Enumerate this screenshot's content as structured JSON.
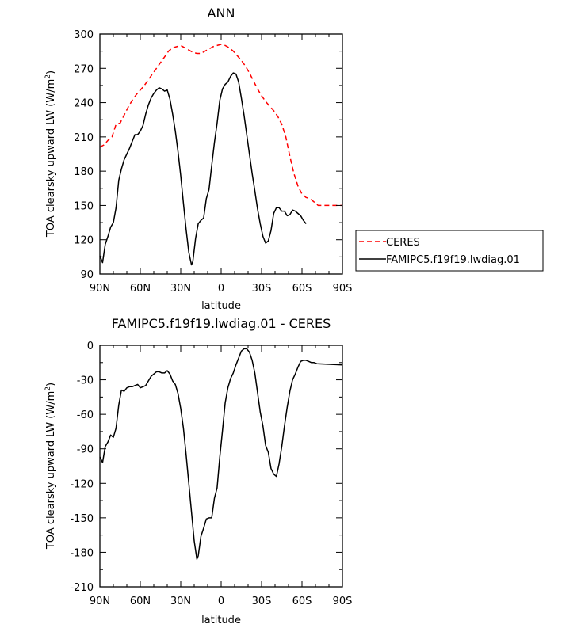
{
  "chart_data": [
    {
      "type": "line",
      "title": "ANN",
      "xlabel": "latitude",
      "ylabel_main": "TOA clearsky upward LW (W/m",
      "ylabel_sup": "2",
      "ylabel_close": ")",
      "xlim": [
        90,
        -90
      ],
      "ylim": [
        90,
        300
      ],
      "x_ticks": [
        {
          "value": 90,
          "label": "90N"
        },
        {
          "value": 60,
          "label": "60N"
        },
        {
          "value": 30,
          "label": "30N"
        },
        {
          "value": 0,
          "label": "0"
        },
        {
          "value": -30,
          "label": "30S"
        },
        {
          "value": -60,
          "label": "60S"
        },
        {
          "value": -90,
          "label": "90S"
        }
      ],
      "y_ticks": [
        90,
        120,
        150,
        180,
        210,
        240,
        270,
        300
      ],
      "legend": "outside-right",
      "series": [
        {
          "name": "CERES",
          "color": "#ff0000",
          "dash": "dashed",
          "points": [
            [
              90,
              201
            ],
            [
              87,
              203
            ],
            [
              84,
              207
            ],
            [
              81,
              210
            ],
            [
              78,
              221
            ],
            [
              75,
              222
            ],
            [
              72,
              229
            ],
            [
              69,
              236
            ],
            [
              66,
              242
            ],
            [
              63,
              247
            ],
            [
              60,
              251
            ],
            [
              57,
              255
            ],
            [
              54,
              260
            ],
            [
              51,
              265
            ],
            [
              48,
              270
            ],
            [
              45,
              275
            ],
            [
              42,
              280
            ],
            [
              39,
              285
            ],
            [
              36,
              288
            ],
            [
              33,
              289
            ],
            [
              30,
              290
            ],
            [
              27,
              288
            ],
            [
              24,
              286
            ],
            [
              21,
              284
            ],
            [
              18,
              283
            ],
            [
              15,
              283
            ],
            [
              12,
              285
            ],
            [
              9,
              287
            ],
            [
              6,
              289
            ],
            [
              3,
              290
            ],
            [
              0,
              291
            ],
            [
              -3,
              290
            ],
            [
              -6,
              288
            ],
            [
              -9,
              285
            ],
            [
              -12,
              281
            ],
            [
              -15,
              277
            ],
            [
              -18,
              272
            ],
            [
              -21,
              266
            ],
            [
              -24,
              259
            ],
            [
              -27,
              252
            ],
            [
              -30,
              246
            ],
            [
              -33,
              241
            ],
            [
              -36,
              237
            ],
            [
              -39,
              233
            ],
            [
              -42,
              228
            ],
            [
              -45,
              221
            ],
            [
              -48,
              210
            ],
            [
              -51,
              193
            ],
            [
              -54,
              178
            ],
            [
              -57,
              167
            ],
            [
              -60,
              160
            ],
            [
              -63,
              157
            ],
            [
              -66,
              156
            ],
            [
              -69,
              153
            ],
            [
              -72,
              150
            ],
            [
              -90,
              150
            ]
          ]
        },
        {
          "name": "FAMIPC5.f19f19.lwdiag.01",
          "color": "#000000",
          "dash": "solid",
          "points": [
            [
              90,
              106
            ],
            [
              88,
              100
            ],
            [
              86,
              116
            ],
            [
              84,
              123
            ],
            [
              82,
              131
            ],
            [
              80,
              135
            ],
            [
              78,
              148
            ],
            [
              76,
              172
            ],
            [
              74,
              182
            ],
            [
              72,
              190
            ],
            [
              70,
              195
            ],
            [
              68,
              200
            ],
            [
              66,
              206
            ],
            [
              64,
              212
            ],
            [
              62,
              212
            ],
            [
              60,
              215
            ],
            [
              58,
              220
            ],
            [
              56,
              230
            ],
            [
              54,
              238
            ],
            [
              52,
              244
            ],
            [
              50,
              248
            ],
            [
              48,
              251
            ],
            [
              46,
              253
            ],
            [
              44,
              252
            ],
            [
              42,
              250
            ],
            [
              40,
              251
            ],
            [
              38,
              243
            ],
            [
              36,
              230
            ],
            [
              34,
              215
            ],
            [
              32,
              197
            ],
            [
              30,
              176
            ],
            [
              28,
              152
            ],
            [
              26,
              129
            ],
            [
              24,
              109
            ],
            [
              22,
              98
            ],
            [
              21,
              101
            ],
            [
              19,
              121
            ],
            [
              17,
              134
            ],
            [
              15,
              137
            ],
            [
              13,
              139
            ],
            [
              11,
              156
            ],
            [
              9,
              164
            ],
            [
              7,
              185
            ],
            [
              5,
              205
            ],
            [
              3,
              222
            ],
            [
              1,
              242
            ],
            [
              -1,
              252
            ],
            [
              -3,
              256
            ],
            [
              -5,
              258
            ],
            [
              -7,
              263
            ],
            [
              -9,
              266
            ],
            [
              -11,
              265
            ],
            [
              -13,
              258
            ],
            [
              -15,
              244
            ],
            [
              -17,
              229
            ],
            [
              -19,
              212
            ],
            [
              -21,
              195
            ],
            [
              -23,
              178
            ],
            [
              -25,
              163
            ],
            [
              -27,
              147
            ],
            [
              -29,
              134
            ],
            [
              -31,
              123
            ],
            [
              -33,
              117
            ],
            [
              -35,
              119
            ],
            [
              -37,
              128
            ],
            [
              -39,
              143
            ],
            [
              -41,
              148
            ],
            [
              -43,
              148
            ],
            [
              -45,
              145
            ],
            [
              -47,
              145
            ],
            [
              -49,
              141
            ],
            [
              -51,
              142
            ],
            [
              -53,
              146
            ],
            [
              -55,
              145
            ],
            [
              -57,
              143
            ],
            [
              -59,
              141
            ],
            [
              -61,
              137
            ],
            [
              -63,
              134
            ]
          ]
        }
      ]
    },
    {
      "type": "line",
      "title": "FAMIPC5.f19f19.lwdiag.01 - CERES",
      "xlabel": "latitude",
      "ylabel_main": "TOA clearsky upward LW (W/m",
      "ylabel_sup": "2",
      "ylabel_close": ")",
      "xlim": [
        90,
        -90
      ],
      "ylim": [
        -210,
        0
      ],
      "x_ticks": [
        {
          "value": 90,
          "label": "90N"
        },
        {
          "value": 60,
          "label": "60N"
        },
        {
          "value": 30,
          "label": "30N"
        },
        {
          "value": 0,
          "label": "0"
        },
        {
          "value": -30,
          "label": "30S"
        },
        {
          "value": -60,
          "label": "60S"
        },
        {
          "value": -90,
          "label": "90S"
        }
      ],
      "y_ticks": [
        -210,
        -180,
        -150,
        -120,
        -90,
        -60,
        -30,
        0
      ],
      "series": [
        {
          "name": "",
          "color": "#000000",
          "dash": "solid",
          "points": [
            [
              90,
              -97
            ],
            [
              88,
              -102
            ],
            [
              86,
              -88
            ],
            [
              84,
              -84
            ],
            [
              82,
              -78
            ],
            [
              80,
              -80
            ],
            [
              78,
              -72
            ],
            [
              76,
              -52
            ],
            [
              74,
              -39
            ],
            [
              72,
              -40
            ],
            [
              70,
              -37
            ],
            [
              68,
              -36
            ],
            [
              66,
              -36
            ],
            [
              64,
              -35
            ],
            [
              62,
              -34
            ],
            [
              60,
              -37
            ],
            [
              58,
              -36
            ],
            [
              56,
              -35
            ],
            [
              54,
              -31
            ],
            [
              52,
              -27
            ],
            [
              50,
              -25
            ],
            [
              48,
              -23
            ],
            [
              46,
              -23
            ],
            [
              44,
              -24
            ],
            [
              42,
              -24
            ],
            [
              40,
              -22
            ],
            [
              38,
              -25
            ],
            [
              36,
              -31
            ],
            [
              34,
              -34
            ],
            [
              32,
              -42
            ],
            [
              30,
              -55
            ],
            [
              28,
              -72
            ],
            [
              26,
              -95
            ],
            [
              24,
              -120
            ],
            [
              22,
              -145
            ],
            [
              20,
              -170
            ],
            [
              18,
              -186
            ],
            [
              17,
              -183
            ],
            [
              15,
              -166
            ],
            [
              13,
              -159
            ],
            [
              11,
              -151
            ],
            [
              9,
              -150
            ],
            [
              7,
              -150
            ],
            [
              5,
              -133
            ],
            [
              3,
              -124
            ],
            [
              1,
              -97
            ],
            [
              -1,
              -74
            ],
            [
              -3,
              -50
            ],
            [
              -5,
              -37
            ],
            [
              -7,
              -29
            ],
            [
              -9,
              -24
            ],
            [
              -11,
              -17
            ],
            [
              -13,
              -11
            ],
            [
              -15,
              -5
            ],
            [
              -17,
              -3
            ],
            [
              -19,
              -3
            ],
            [
              -21,
              -6
            ],
            [
              -23,
              -13
            ],
            [
              -25,
              -24
            ],
            [
              -27,
              -41
            ],
            [
              -29,
              -58
            ],
            [
              -31,
              -70
            ],
            [
              -33,
              -87
            ],
            [
              -35,
              -93
            ],
            [
              -37,
              -107
            ],
            [
              -39,
              -112
            ],
            [
              -41,
              -114
            ],
            [
              -43,
              -103
            ],
            [
              -45,
              -88
            ],
            [
              -47,
              -70
            ],
            [
              -49,
              -54
            ],
            [
              -51,
              -40
            ],
            [
              -53,
              -30
            ],
            [
              -55,
              -25
            ],
            [
              -57,
              -19
            ],
            [
              -59,
              -14
            ],
            [
              -61,
              -13
            ],
            [
              -63,
              -13
            ],
            [
              -65,
              -14
            ],
            [
              -67,
              -15
            ],
            [
              -69,
              -15
            ],
            [
              -71,
              -16
            ],
            [
              -90,
              -17
            ]
          ]
        }
      ]
    }
  ]
}
